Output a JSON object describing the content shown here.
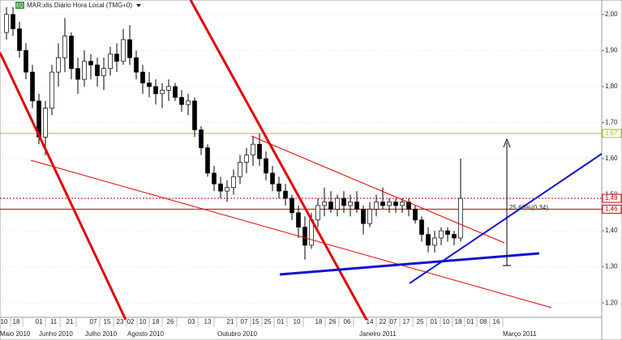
{
  "chart_data": {
    "type": "candlestick",
    "title": "MAR:xlis Diário Hora Local (TMG+0)",
    "badge": "EQ",
    "open": [
      1.95,
      2.0,
      1.96,
      1.9,
      1.84,
      1.76,
      1.66,
      1.74,
      1.84,
      1.88,
      1.94,
      1.85,
      1.82,
      1.87,
      1.86,
      1.83,
      1.85,
      1.89,
      1.87,
      1.93,
      1.88,
      1.84,
      1.81,
      1.8,
      1.78,
      1.79,
      1.8,
      1.77,
      1.75,
      1.76,
      1.68,
      1.63,
      1.56,
      1.53,
      1.51,
      1.52,
      1.55,
      1.59,
      1.61,
      1.64,
      1.6,
      1.56,
      1.53,
      1.51,
      1.49,
      1.45,
      1.41,
      1.36,
      1.43,
      1.47,
      1.48,
      1.46,
      1.49,
      1.47,
      1.48,
      1.46,
      1.42,
      1.46,
      1.48,
      1.47,
      1.48,
      1.47,
      1.48,
      1.46,
      1.43,
      1.39,
      1.36,
      1.38,
      1.4,
      1.39,
      1.38
    ],
    "high": [
      2.02,
      2.02,
      1.98,
      1.92,
      1.86,
      1.78,
      1.76,
      1.86,
      1.92,
      1.99,
      1.95,
      1.88,
      1.9,
      1.89,
      1.88,
      1.88,
      1.91,
      1.92,
      1.96,
      1.97,
      1.9,
      1.86,
      1.84,
      1.82,
      1.81,
      1.82,
      1.81,
      1.79,
      1.78,
      1.77,
      1.69,
      1.64,
      1.58,
      1.55,
      1.54,
      1.57,
      1.61,
      1.63,
      1.66,
      1.67,
      1.62,
      1.58,
      1.55,
      1.53,
      1.5,
      1.47,
      1.44,
      1.45,
      1.49,
      1.52,
      1.51,
      1.5,
      1.51,
      1.5,
      1.51,
      1.47,
      1.48,
      1.5,
      1.52,
      1.49,
      1.49,
      1.49,
      1.49,
      1.47,
      1.44,
      1.41,
      1.4,
      1.41,
      1.41,
      1.4,
      1.6
    ],
    "low": [
      1.93,
      1.94,
      1.88,
      1.82,
      1.74,
      1.64,
      1.61,
      1.72,
      1.8,
      1.84,
      1.82,
      1.78,
      1.8,
      1.82,
      1.8,
      1.79,
      1.83,
      1.84,
      1.86,
      1.86,
      1.82,
      1.78,
      1.77,
      1.75,
      1.74,
      1.76,
      1.76,
      1.73,
      1.72,
      1.66,
      1.61,
      1.55,
      1.51,
      1.49,
      1.48,
      1.5,
      1.53,
      1.56,
      1.58,
      1.58,
      1.54,
      1.51,
      1.49,
      1.47,
      1.43,
      1.38,
      1.32,
      1.35,
      1.41,
      1.44,
      1.45,
      1.44,
      1.45,
      1.44,
      1.45,
      1.39,
      1.41,
      1.44,
      1.46,
      1.45,
      1.45,
      1.45,
      1.44,
      1.42,
      1.37,
      1.34,
      1.34,
      1.36,
      1.37,
      1.36,
      1.37
    ],
    "close": [
      2.0,
      1.96,
      1.9,
      1.84,
      1.76,
      1.66,
      1.74,
      1.84,
      1.88,
      1.94,
      1.85,
      1.82,
      1.87,
      1.86,
      1.83,
      1.85,
      1.89,
      1.87,
      1.93,
      1.88,
      1.84,
      1.81,
      1.8,
      1.78,
      1.79,
      1.8,
      1.77,
      1.75,
      1.76,
      1.68,
      1.63,
      1.56,
      1.53,
      1.51,
      1.52,
      1.55,
      1.59,
      1.61,
      1.64,
      1.6,
      1.56,
      1.53,
      1.51,
      1.49,
      1.45,
      1.41,
      1.36,
      1.43,
      1.47,
      1.48,
      1.46,
      1.49,
      1.47,
      1.48,
      1.46,
      1.42,
      1.46,
      1.48,
      1.47,
      1.48,
      1.47,
      1.48,
      1.46,
      1.43,
      1.39,
      1.36,
      1.38,
      1.4,
      1.39,
      1.38,
      1.49
    ],
    "ylim": [
      1.16,
      2.04
    ],
    "yticks": [
      {
        "value": 1.2,
        "label": "1,20"
      },
      {
        "value": 1.3,
        "label": "1,30"
      },
      {
        "value": 1.4,
        "label": "1,40"
      },
      {
        "value": 1.5,
        "label": "1,50"
      },
      {
        "value": 1.6,
        "label": "1,60"
      },
      {
        "value": 1.7,
        "label": "1,70"
      },
      {
        "value": 1.8,
        "label": "1,80"
      },
      {
        "value": 1.9,
        "label": "1,90"
      },
      {
        "value": 2.0,
        "label": "2,00"
      }
    ],
    "grid": true,
    "levels": [
      {
        "value": 1.67,
        "label": "1,67",
        "color": "#a8c800",
        "style": "solid"
      },
      {
        "value": 1.49,
        "label": "1,49",
        "color": "#c00000",
        "style": "dotted"
      },
      {
        "value": 1.46,
        "label": "1,46",
        "color": "#c00000",
        "style": "solid"
      }
    ],
    "annotation": "25,63%(0,34)",
    "day_labels": [
      "10",
      "18",
      "01",
      "11",
      "21",
      "07",
      "15",
      "23",
      "02",
      "10",
      "18",
      "26",
      "03",
      "13",
      "21",
      "07",
      "15",
      "25",
      "01",
      "10",
      "18",
      "26",
      "06",
      "14",
      "22",
      "07",
      "17",
      "25",
      "01",
      "10",
      "18",
      "01",
      "08",
      "16"
    ],
    "month_labels": [
      "Maio 2010",
      "Junho 2010",
      "Julho 2010",
      "Agosto 2010",
      "Outubro 2010",
      "Janeiro 2011",
      "Março 2011"
    ]
  }
}
